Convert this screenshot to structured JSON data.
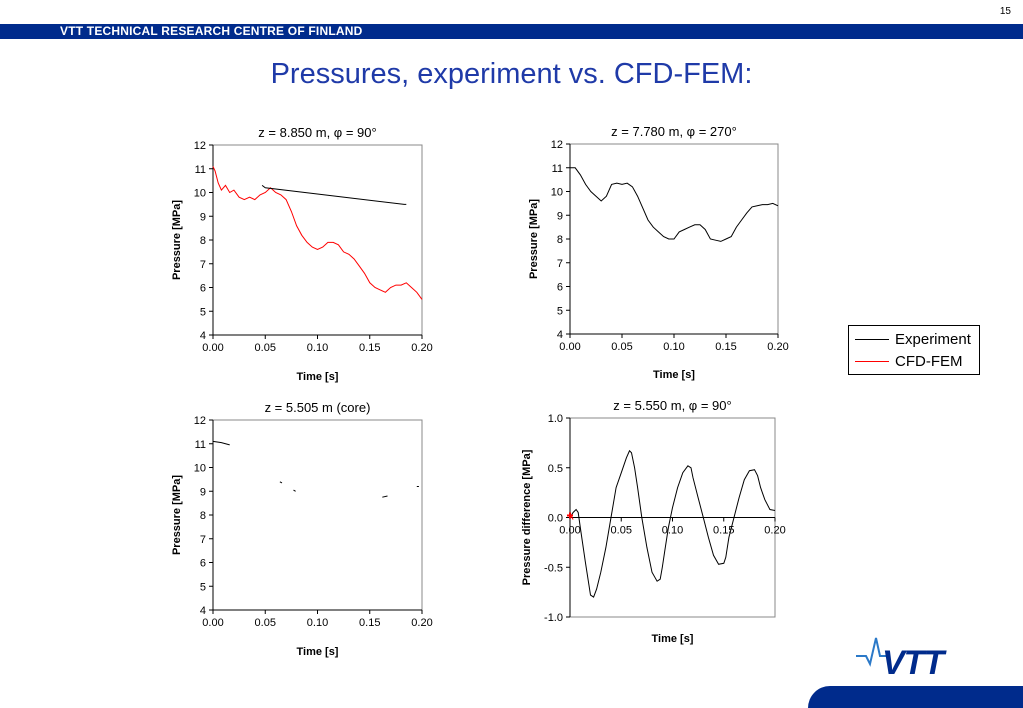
{
  "page": {
    "number": "15",
    "header": "VTT TECHNICAL RESEARCH CENTRE OF FINLAND",
    "title": "Pressures, experiment vs. CFD-FEM:",
    "brand_color": "#002b8c",
    "title_color": "#1f3aa8",
    "logo_text": "VTT"
  },
  "legend": {
    "items": [
      {
        "label": "Experiment",
        "color": "#000000"
      },
      {
        "label": "CFD-FEM",
        "color": "#ff0000"
      }
    ]
  },
  "chart_data": [
    {
      "type": "line",
      "title": "z = 8.850 m, φ = 90°",
      "xlabel": "Time [s]",
      "ylabel": "Pressure [MPa]",
      "xlim": [
        0,
        0.2
      ],
      "ylim": [
        4,
        12
      ],
      "xticks": [
        "0.00",
        "0.05",
        "0.10",
        "0.15",
        "0.20"
      ],
      "yticks": [
        "4",
        "5",
        "6",
        "7",
        "8",
        "9",
        "10",
        "11",
        "12"
      ],
      "series": [
        {
          "name": "CFD-FEM",
          "color": "#ff0000",
          "x": [
            0.0,
            0.002,
            0.005,
            0.008,
            0.012,
            0.016,
            0.02,
            0.025,
            0.03,
            0.035,
            0.04,
            0.045,
            0.05,
            0.055,
            0.06,
            0.065,
            0.07,
            0.075,
            0.08,
            0.085,
            0.09,
            0.095,
            0.1,
            0.105,
            0.11,
            0.115,
            0.12,
            0.125,
            0.13,
            0.135,
            0.14,
            0.145,
            0.15,
            0.155,
            0.16,
            0.165,
            0.17,
            0.175,
            0.18,
            0.185,
            0.19,
            0.195,
            0.2
          ],
          "y": [
            11.1,
            10.9,
            10.4,
            10.1,
            10.3,
            10.0,
            10.1,
            9.8,
            9.7,
            9.8,
            9.7,
            9.9,
            10.0,
            10.2,
            10.0,
            9.9,
            9.7,
            9.2,
            8.6,
            8.2,
            7.9,
            7.7,
            7.6,
            7.7,
            7.9,
            7.9,
            7.8,
            7.5,
            7.4,
            7.2,
            6.9,
            6.6,
            6.2,
            6.0,
            5.9,
            5.8,
            6.0,
            6.1,
            6.1,
            6.2,
            6.0,
            5.8,
            5.5
          ]
        },
        {
          "name": "Experiment",
          "color": "#000000",
          "x": [
            0.047,
            0.05,
            0.183,
            0.185
          ],
          "y": [
            10.3,
            10.2,
            9.5,
            9.5
          ]
        }
      ]
    },
    {
      "type": "line",
      "title": "z = 7.780 m, φ = 270°",
      "xlabel": "Time [s]",
      "ylabel": "Pressure [MPa]",
      "xlim": [
        0,
        0.2
      ],
      "ylim": [
        4,
        12
      ],
      "xticks": [
        "0.00",
        "0.05",
        "0.10",
        "0.15",
        "0.20"
      ],
      "yticks": [
        "4",
        "5",
        "6",
        "7",
        "8",
        "9",
        "10",
        "11",
        "12"
      ],
      "series": [
        {
          "name": "Experiment",
          "color": "#000000",
          "x": [
            0.0,
            0.005,
            0.01,
            0.015,
            0.02,
            0.025,
            0.03,
            0.035,
            0.04,
            0.045,
            0.05,
            0.055,
            0.06,
            0.065,
            0.07,
            0.075,
            0.08,
            0.085,
            0.09,
            0.095,
            0.1,
            0.105,
            0.11,
            0.115,
            0.12,
            0.125,
            0.13,
            0.135,
            0.14,
            0.145,
            0.15,
            0.155,
            0.16,
            0.165,
            0.17,
            0.175,
            0.18,
            0.185,
            0.19,
            0.195,
            0.2
          ],
          "y": [
            11.0,
            11.0,
            10.7,
            10.3,
            10.0,
            9.8,
            9.6,
            9.8,
            10.3,
            10.35,
            10.3,
            10.35,
            10.2,
            9.8,
            9.3,
            8.8,
            8.5,
            8.3,
            8.1,
            8.0,
            8.0,
            8.3,
            8.4,
            8.5,
            8.6,
            8.6,
            8.4,
            8.0,
            7.95,
            7.9,
            8.0,
            8.1,
            8.5,
            8.8,
            9.1,
            9.35,
            9.4,
            9.45,
            9.45,
            9.5,
            9.4
          ]
        }
      ]
    },
    {
      "type": "line",
      "title": "z = 5.505 m (core)",
      "xlabel": "Time [s]",
      "ylabel": "Pressure [MPa]",
      "xlim": [
        0,
        0.2
      ],
      "ylim": [
        4,
        12
      ],
      "xticks": [
        "0.00",
        "0.05",
        "0.10",
        "0.15",
        "0.20"
      ],
      "yticks": [
        "4",
        "5",
        "6",
        "7",
        "8",
        "9",
        "10",
        "11",
        "12"
      ],
      "series": [
        {
          "name": "Experiment",
          "color": "#000000",
          "segments": [
            {
              "x": [
                0.0,
                0.008,
                0.016
              ],
              "y": [
                11.1,
                11.05,
                10.95
              ]
            },
            {
              "x": [
                0.064,
                0.066
              ],
              "y": [
                9.4,
                9.35
              ]
            },
            {
              "x": [
                0.077,
                0.079
              ],
              "y": [
                9.05,
                9.0
              ]
            },
            {
              "x": [
                0.162,
                0.167
              ],
              "y": [
                8.75,
                8.8
              ]
            },
            {
              "x": [
                0.195,
                0.197
              ],
              "y": [
                9.2,
                9.2
              ]
            }
          ]
        }
      ]
    },
    {
      "type": "line",
      "title": "z = 5.550 m, φ = 90°",
      "xlabel": "Time [s]",
      "ylabel": "Pressure difference [MPa]",
      "xlim": [
        0,
        0.2
      ],
      "ylim": [
        -1.0,
        1.0
      ],
      "xticks": [
        "0.00",
        "0.05",
        "0.10",
        "0.15",
        "0.20"
      ],
      "yticks": [
        "-1.0",
        "-0.5",
        "0.0",
        "0.5",
        "1.0"
      ],
      "series": [
        {
          "name": "Experiment",
          "color": "#000000",
          "x": [
            0.0,
            0.003,
            0.006,
            0.008,
            0.01,
            0.015,
            0.02,
            0.023,
            0.026,
            0.03,
            0.035,
            0.04,
            0.045,
            0.05,
            0.055,
            0.058,
            0.06,
            0.063,
            0.066,
            0.07,
            0.075,
            0.08,
            0.085,
            0.088,
            0.09,
            0.093,
            0.096,
            0.1,
            0.105,
            0.11,
            0.115,
            0.118,
            0.12,
            0.125,
            0.13,
            0.135,
            0.14,
            0.145,
            0.15,
            0.152,
            0.155,
            0.16,
            0.165,
            0.17,
            0.175,
            0.18,
            0.183,
            0.186,
            0.19,
            0.195,
            0.2
          ],
          "y": [
            0.0,
            0.05,
            0.08,
            0.05,
            -0.1,
            -0.45,
            -0.78,
            -0.8,
            -0.72,
            -0.55,
            -0.3,
            0.0,
            0.3,
            0.45,
            0.6,
            0.67,
            0.65,
            0.5,
            0.3,
            0.0,
            -0.3,
            -0.55,
            -0.64,
            -0.62,
            -0.5,
            -0.3,
            -0.1,
            0.1,
            0.3,
            0.45,
            0.52,
            0.5,
            0.4,
            0.2,
            0.0,
            -0.2,
            -0.38,
            -0.47,
            -0.46,
            -0.4,
            -0.2,
            0.0,
            0.2,
            0.38,
            0.47,
            0.48,
            0.42,
            0.3,
            0.18,
            0.08,
            0.07
          ]
        },
        {
          "name": "CFD-FEM",
          "color": "#ff0000",
          "x": [
            0.0,
            0.002,
            0.003
          ],
          "y": [
            0.02,
            0.0,
            -0.02
          ]
        }
      ]
    }
  ]
}
